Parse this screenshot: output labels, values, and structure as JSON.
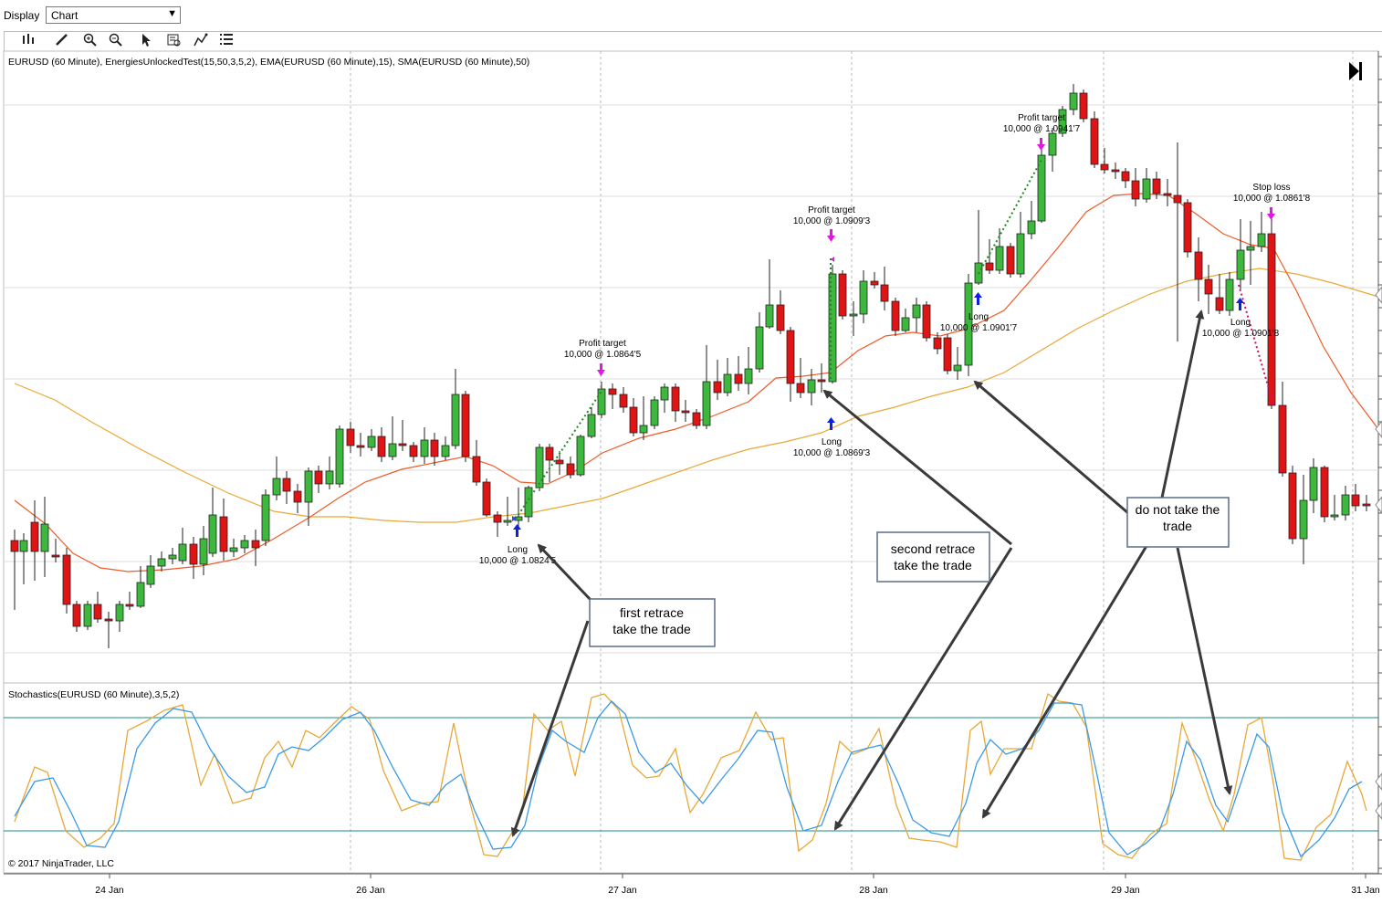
{
  "window": {
    "display_label": "Display",
    "display_value": "Chart"
  },
  "toolbar": {
    "icons": [
      "bar-chart-icon",
      "pencil-icon",
      "zoom-in-icon",
      "zoom-out-icon",
      "pointer-icon",
      "data-box-icon",
      "drawing-tools-icon",
      "list-icon"
    ]
  },
  "price_panel": {
    "title": "EURUSD (60 Minute), EnergiesUnlockedTest(15,50,3,5,2), EMA(EURUSD (60 Minute),15), SMA(EURUSD (60 Minute),50)",
    "colors": {
      "up": "#3cb93c",
      "down": "#e01414",
      "ema": "#f05a28",
      "sma": "#e8a838",
      "grid": "#d8d8d8"
    }
  },
  "indicator_panel": {
    "title": "Stochastics(EURUSD (60 Minute),3,5,2)",
    "copyright": "© 2017 NinjaTrader, LLC",
    "colors": {
      "k": "#e8a838",
      "d": "#3a9ae8",
      "levels": "#1c8c8c"
    }
  },
  "x_axis": {
    "labels": [
      "24 Jan",
      "26 Jan",
      "27 Jan",
      "28 Jan",
      "29 Jan",
      "31 Jan"
    ]
  },
  "trades": [
    {
      "entry_title": "Long",
      "entry_detail": "10,000 @ 1.0824'5",
      "exit_title": "Profit target",
      "exit_detail": "10,000 @ 1.0864'5"
    },
    {
      "entry_title": "Long",
      "entry_detail": "10,000 @ 1.0869'3",
      "exit_title": "Profit target",
      "exit_detail": "10,000 @ 1.0909'3"
    },
    {
      "entry_title": "Long",
      "entry_detail": "10,000 @ 1.0901'7",
      "exit_title": "Profit target",
      "exit_detail": "10,000 @ 1.0941'7"
    },
    {
      "entry_title": "Long",
      "entry_detail": "10,000 @ 1.0901'8",
      "exit_title": "Stop loss",
      "exit_detail": "10,000 @ 1.0861'8"
    }
  ],
  "annotations": [
    {
      "line1": "first retrace",
      "line2": "take the trade"
    },
    {
      "line1": "second retrace",
      "line2": "take the trade"
    },
    {
      "line1": "do not take the",
      "line2": "trade"
    }
  ]
}
